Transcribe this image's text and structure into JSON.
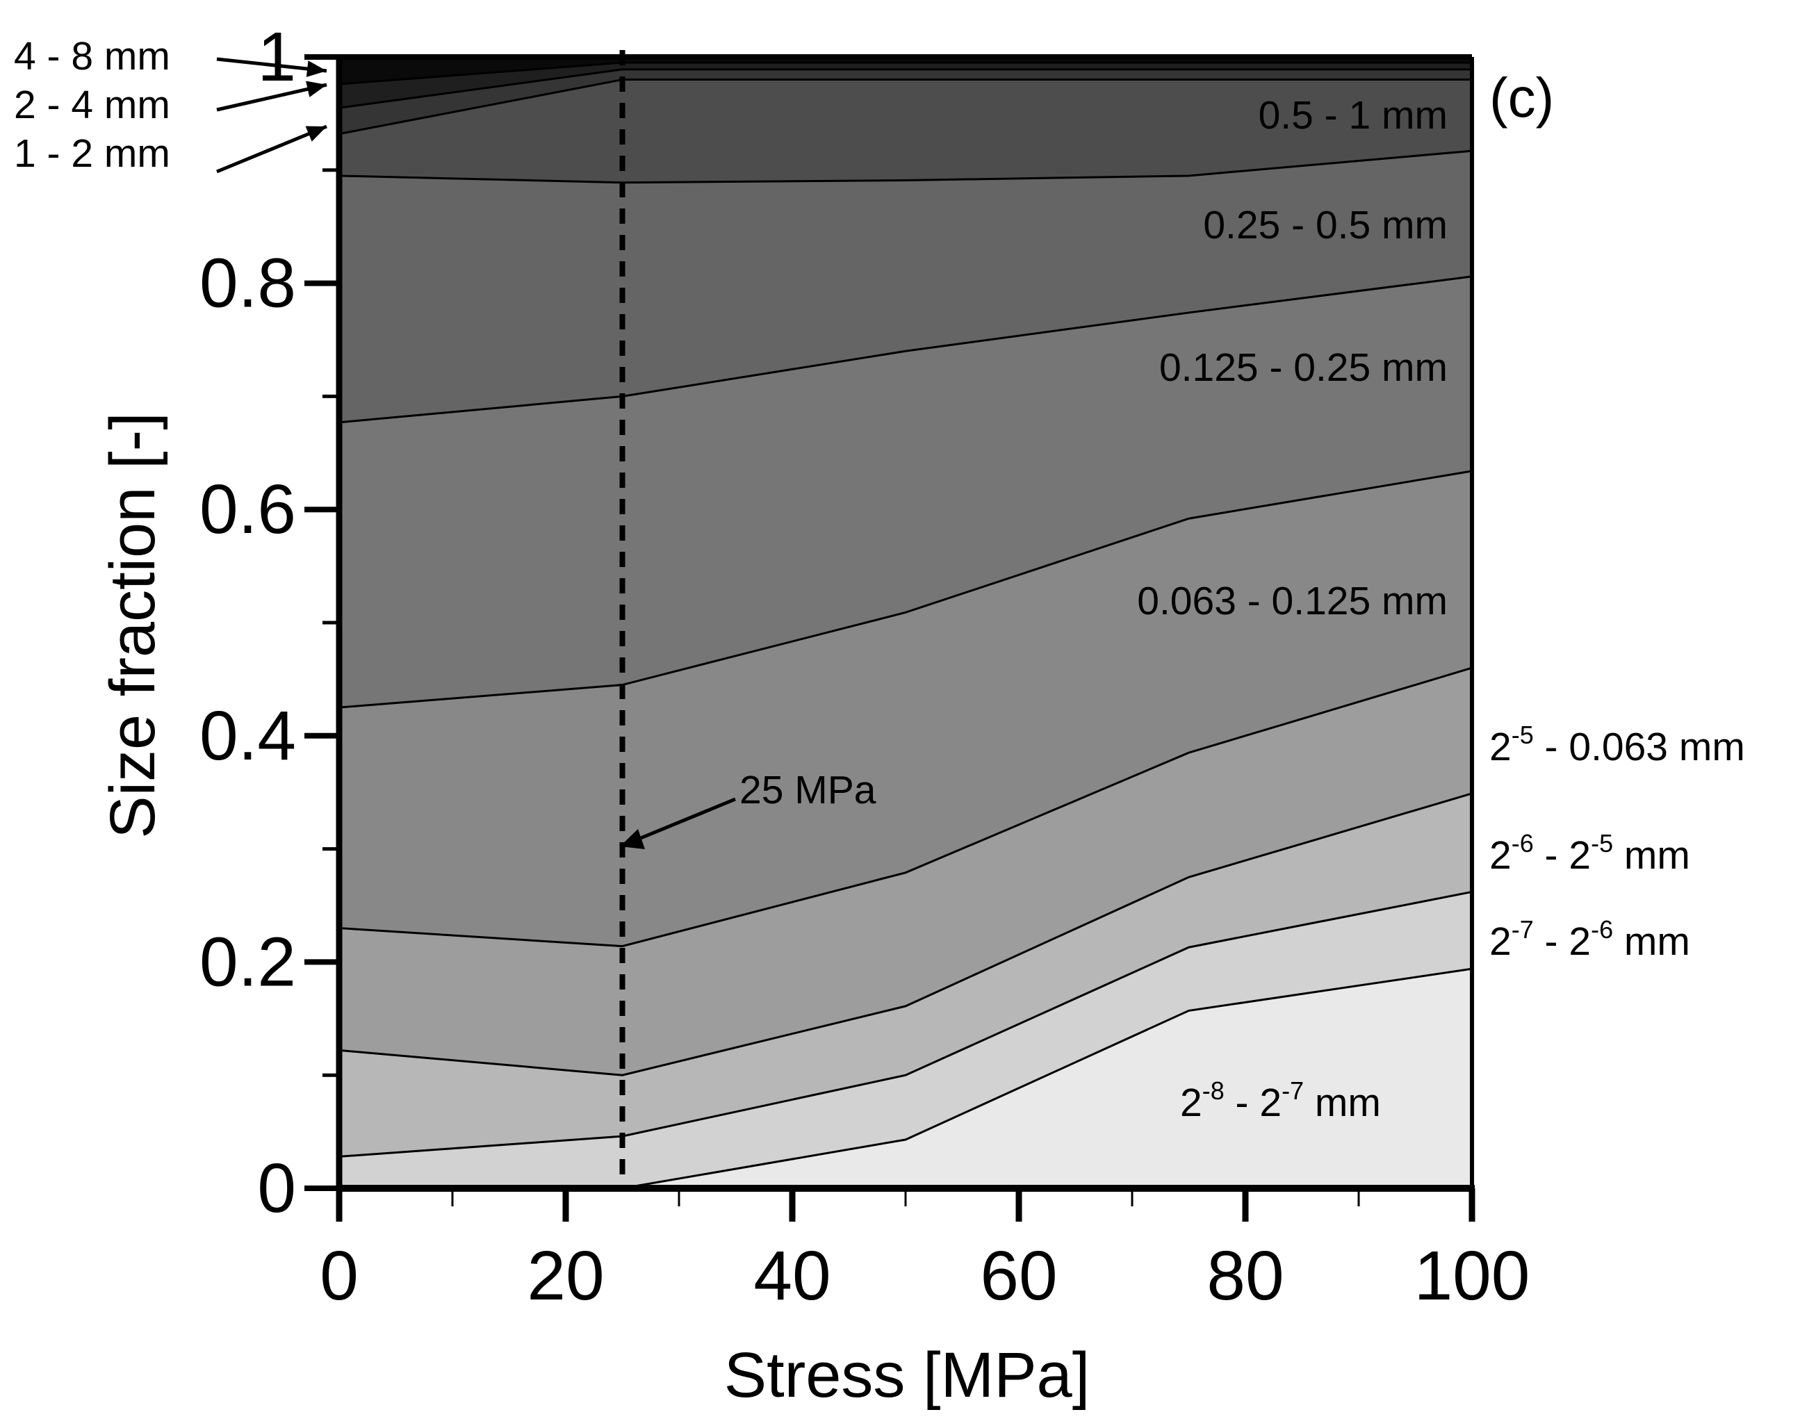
{
  "chart_data": {
    "type": "area",
    "stacked": true,
    "xlabel": "Stress [MPa]",
    "ylabel": "Size fraction [-]",
    "panel_label": "(c)",
    "xlim": [
      0,
      100
    ],
    "ylim": [
      0,
      1
    ],
    "xticks": [
      0,
      20,
      40,
      60,
      80,
      100
    ],
    "yticks": [
      0,
      0.2,
      0.4,
      0.6,
      0.8,
      1
    ],
    "ytick_labels": [
      "0",
      "0.2",
      "0.4",
      "0.6",
      "0.8",
      "1"
    ],
    "grid": false,
    "x": [
      0,
      25,
      50,
      75,
      100
    ],
    "boundaries": [
      {
        "lower": "2-8 - 2-7 mm",
        "upper": "2-7 - 2-6 mm",
        "values": [
          0.0,
          0.0,
          0.043,
          0.157,
          0.194
        ]
      },
      {
        "lower": "2-7 - 2-6 mm",
        "upper": "2-6 - 2-5 mm",
        "values": [
          0.028,
          0.046,
          0.1,
          0.213,
          0.262
        ]
      },
      {
        "lower": "2-6 - 2-5 mm",
        "upper": "2-5 - 0.063 mm",
        "values": [
          0.122,
          0.1,
          0.161,
          0.275,
          0.349
        ]
      },
      {
        "lower": "2-5 - 0.063 mm",
        "upper": "0.063 - 0.125 mm",
        "values": [
          0.23,
          0.214,
          0.279,
          0.385,
          0.46
        ]
      },
      {
        "lower": "0.063 - 0.125 mm",
        "upper": "0.125 - 0.25 mm",
        "values": [
          0.425,
          0.445,
          0.509,
          0.592,
          0.634
        ]
      },
      {
        "lower": "0.125 - 0.25 mm",
        "upper": "0.25 - 0.5 mm",
        "values": [
          0.677,
          0.7,
          0.74,
          0.774,
          0.806
        ]
      },
      {
        "lower": "0.25 - 0.5 mm",
        "upper": "0.5 - 1 mm",
        "values": [
          0.895,
          0.889,
          0.891,
          0.895,
          0.917
        ]
      },
      {
        "lower": "0.5 - 1 mm",
        "upper": "1 - 2 mm",
        "values": [
          0.932,
          0.98,
          0.98,
          0.98,
          0.98
        ]
      },
      {
        "lower": "1 - 2 mm",
        "upper": "2 - 4 mm",
        "values": [
          0.955,
          0.989,
          0.989,
          0.989,
          0.989
        ]
      },
      {
        "lower": "2 - 4 mm",
        "upper": "4 - 8 mm",
        "values": [
          0.976,
          0.995,
          0.995,
          0.995,
          0.995
        ]
      },
      {
        "lower": "4 - 8 mm",
        "upper": "top",
        "values": [
          1.0,
          1.0,
          1.0,
          1.0,
          1.0
        ]
      }
    ],
    "band_colors": [
      "#e9e9e9",
      "#d2d2d2",
      "#b7b7b7",
      "#9d9d9d",
      "#888888",
      "#767676",
      "#656565",
      "#4d4d4d",
      "#353535",
      "#1f1f1f",
      "#0a0a0a"
    ],
    "band_labels": [
      {
        "id": "band-label-0063-0125",
        "text": "0.063 - 0.125 mm"
      },
      {
        "id": "band-label-0125-025",
        "text": "0.125 - 0.25 mm"
      },
      {
        "id": "band-label-025-05",
        "text": "0.25 - 0.5 mm"
      },
      {
        "id": "band-label-05-1",
        "text": "0.5 - 1 mm"
      }
    ],
    "superscript_labels": [
      {
        "id": "band-label-2m8-2m7",
        "base1": "2",
        "exp1": "-8",
        "mid": " - ",
        "base2": "2",
        "exp2": "-7",
        "unit": " mm"
      },
      {
        "id": "band-label-2m7-2m6",
        "base1": "2",
        "exp1": "-7",
        "mid": " - ",
        "base2": "2",
        "exp2": "-6",
        "unit": " mm"
      },
      {
        "id": "band-label-2m6-2m5",
        "base1": "2",
        "exp1": "-6",
        "mid": " - ",
        "base2": "2",
        "exp2": "-5",
        "unit": " mm"
      },
      {
        "id": "band-label-2m5-0063",
        "base1": "2",
        "exp1": "-5",
        "mid": " - 0.063",
        "base2": "",
        "exp2": "",
        "unit": " mm"
      }
    ],
    "callout_labels": [
      {
        "id": "callout-4-8mm",
        "text": "4 - 8 mm"
      },
      {
        "id": "callout-2-4mm",
        "text": "2 - 4 mm"
      },
      {
        "id": "callout-1-2mm",
        "text": "1 - 2 mm"
      }
    ],
    "reference_line": {
      "x": 25,
      "label": "25 MPa"
    }
  }
}
